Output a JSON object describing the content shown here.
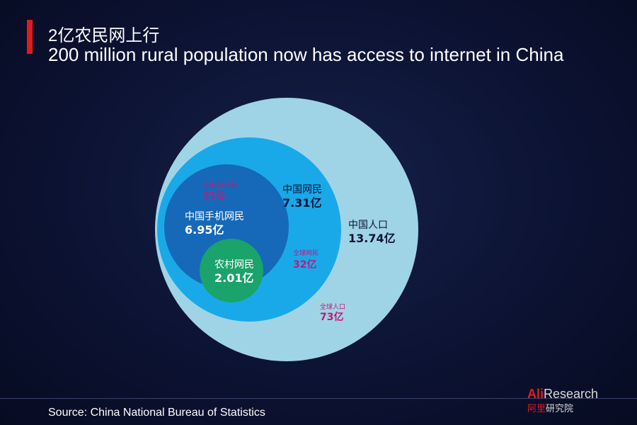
{
  "header": {
    "title_cn": "2亿农民网上行",
    "title_en": "200 million rural population now has access to internet in China"
  },
  "diagram": {
    "china_population": {
      "label": "中国人口",
      "value": "13.74亿",
      "global_label": "全球人口",
      "global_value": "73亿",
      "color": "#9fd4e6"
    },
    "china_netizens": {
      "label": "中国网民",
      "value": "7.31亿",
      "global_label": "全球网民",
      "global_value": "32亿",
      "color": "#1aa9e8"
    },
    "china_mobile_netizens": {
      "label": "中国手机网民",
      "value": "6.95亿",
      "global_label": "全球智能手机",
      "global_value": "21亿",
      "color": "#1569b8"
    },
    "rural_netizens": {
      "label": "农村网民",
      "value": "2.01亿",
      "color": "#1aa36a"
    },
    "global_text_color": "#c2187a"
  },
  "footer": {
    "source": "Source: China National Bureau of Statistics",
    "brand_main_a": "Ali",
    "brand_main_b": "Research",
    "brand_sub_a": "阿里",
    "brand_sub_b": "研究院"
  }
}
